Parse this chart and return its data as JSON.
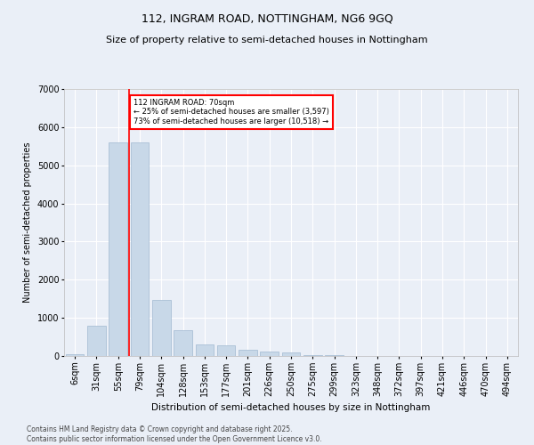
{
  "title1": "112, INGRAM ROAD, NOTTINGHAM, NG6 9GQ",
  "title2": "Size of property relative to semi-detached houses in Nottingham",
  "xlabel": "Distribution of semi-detached houses by size in Nottingham",
  "ylabel": "Number of semi-detached properties",
  "categories": [
    "6sqm",
    "31sqm",
    "55sqm",
    "79sqm",
    "104sqm",
    "128sqm",
    "153sqm",
    "177sqm",
    "201sqm",
    "226sqm",
    "250sqm",
    "275sqm",
    "299sqm",
    "323sqm",
    "348sqm",
    "372sqm",
    "397sqm",
    "421sqm",
    "446sqm",
    "470sqm",
    "494sqm"
  ],
  "values": [
    50,
    800,
    5600,
    5600,
    1480,
    680,
    300,
    270,
    165,
    120,
    90,
    30,
    15,
    8,
    5,
    3,
    2,
    1,
    1,
    1,
    0
  ],
  "bar_color": "#c8d8e8",
  "bar_edge_color": "#a0b8d0",
  "vline_x_index": 2.5,
  "vline_color": "red",
  "annotation_line1": "112 INGRAM ROAD: 70sqm",
  "annotation_line2": "← 25% of semi-detached houses are smaller (3,597)",
  "annotation_line3": "73% of semi-detached houses are larger (10,518) →",
  "ylim": [
    0,
    7000
  ],
  "background_color": "#eaeff7",
  "plot_bg_color": "#eaeff7",
  "grid_color": "#ffffff",
  "footer1": "Contains HM Land Registry data © Crown copyright and database right 2025.",
  "footer2": "Contains public sector information licensed under the Open Government Licence v3.0."
}
